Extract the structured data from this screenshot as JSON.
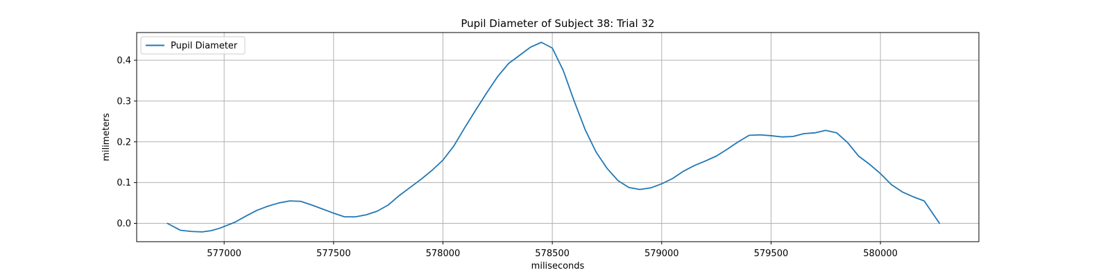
{
  "chart_data": {
    "type": "line",
    "title": "Pupil Diameter of Subject 38: Trial 32",
    "xlabel": "miliseconds",
    "ylabel": "milimeters",
    "xlim": [
      576600,
      580450
    ],
    "ylim": [
      -0.045,
      0.468
    ],
    "x_ticks": [
      577000,
      577500,
      578000,
      578500,
      579000,
      579500,
      580000
    ],
    "y_ticks": [
      0.0,
      0.1,
      0.2,
      0.3,
      0.4
    ],
    "x_tick_labels": [
      "577000",
      "577500",
      "578000",
      "578500",
      "579000",
      "579500",
      "580000"
    ],
    "y_tick_labels": [
      "0.0",
      "0.1",
      "0.2",
      "0.3",
      "0.4"
    ],
    "grid": true,
    "legend": {
      "position": "upper-left",
      "entries": [
        "Pupil Diameter"
      ]
    },
    "colors": {
      "series": "#1f77b4",
      "grid": "#b0b0b0",
      "axes": "#000000"
    },
    "series": [
      {
        "name": "Pupil Diameter",
        "x": [
          576740,
          576800,
          576850,
          576900,
          576940,
          576980,
          577050,
          577100,
          577150,
          577200,
          577250,
          577300,
          577350,
          577400,
          577450,
          577500,
          577550,
          577600,
          577650,
          577700,
          577750,
          577800,
          577850,
          577900,
          577950,
          578000,
          578050,
          578100,
          578150,
          578200,
          578250,
          578300,
          578350,
          578400,
          578450,
          578500,
          578550,
          578600,
          578650,
          578700,
          578750,
          578800,
          578850,
          578900,
          578950,
          579000,
          579050,
          579100,
          579150,
          579200,
          579250,
          579300,
          579350,
          579400,
          579450,
          579500,
          579550,
          579600,
          579650,
          579700,
          579750,
          579800,
          579850,
          579900,
          579950,
          580000,
          580050,
          580100,
          580150,
          580200,
          580270
        ],
        "y": [
          0.0,
          -0.017,
          -0.02,
          -0.021,
          -0.018,
          -0.012,
          0.003,
          0.018,
          0.032,
          0.042,
          0.05,
          0.055,
          0.054,
          0.045,
          0.035,
          0.025,
          0.016,
          0.016,
          0.021,
          0.03,
          0.045,
          0.068,
          0.088,
          0.108,
          0.13,
          0.155,
          0.19,
          0.235,
          0.278,
          0.32,
          0.36,
          0.392,
          0.412,
          0.432,
          0.444,
          0.43,
          0.375,
          0.3,
          0.23,
          0.175,
          0.135,
          0.105,
          0.088,
          0.083,
          0.087,
          0.097,
          0.11,
          0.128,
          0.142,
          0.153,
          0.165,
          0.182,
          0.2,
          0.216,
          0.217,
          0.215,
          0.212,
          0.213,
          0.22,
          0.222,
          0.228,
          0.222,
          0.198,
          0.165,
          0.145,
          0.122,
          0.095,
          0.077,
          0.065,
          0.055,
          0.0
        ]
      }
    ]
  }
}
